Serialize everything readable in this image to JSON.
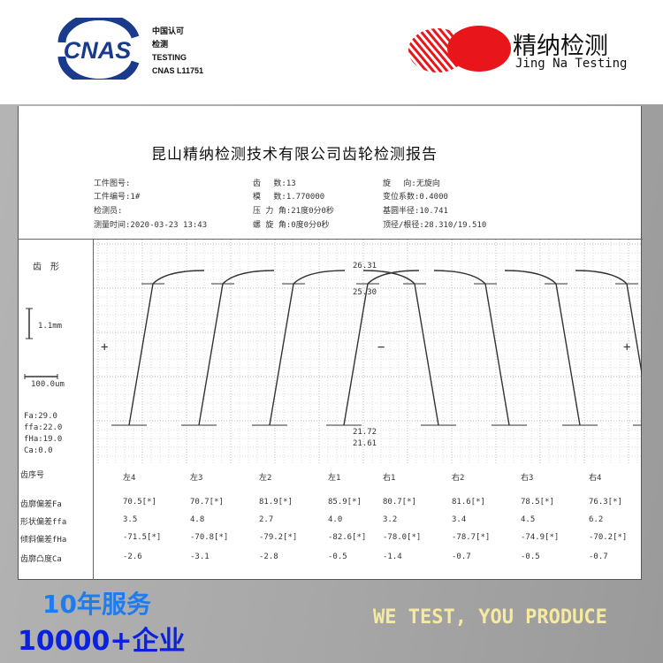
{
  "header": {
    "cnas_logo": "CNAS",
    "cnas_lines": [
      "中国认可",
      "检测",
      "TESTING",
      "CNAS L11751"
    ],
    "brand_cn": "精纳检测",
    "brand_en": "Jing Na Testing",
    "colors": {
      "cnas": "#1a3b8c",
      "brand": "#e8161b"
    }
  },
  "report": {
    "title": "昆山精纳检测技术有限公司齿轮检测报告",
    "info": [
      [
        "工件图号:",
        "齿　 数:13",
        "旋　 向:无旋向"
      ],
      [
        "工件编号:1#",
        "模　 数:1.770000",
        "变位系数:0.4000"
      ],
      [
        "检测员:",
        "压 力 角:21度0分0秒",
        "基圆半径:10.741"
      ],
      [
        "测量时间:2020-03-23 13:43",
        "螺 旋 角:0度0分0秒",
        "顶径/根径:28.310/19.510"
      ]
    ],
    "side": {
      "heading": "齿　形",
      "vscale": "1.1mm",
      "hscale": "100.0um",
      "tol": [
        "Fa:29.0",
        "ffa:22.0",
        "fHa:19.0",
        "Ca:0.0"
      ]
    },
    "chart_labels": {
      "top1": "26.31",
      "top2": "25.30",
      "bot1": "21.72",
      "bot2": "21.61",
      "left_sign": "+",
      "mid_sign": "−",
      "right_sign": "+"
    },
    "table": {
      "row_headers": [
        "齿序号",
        "齿廓偏差Fa",
        "形状偏差ffa",
        "倾斜偏差fHa",
        "齿廓凸度Ca"
      ],
      "columns": [
        "左4",
        "左3",
        "左2",
        "左1",
        "右1",
        "右2",
        "右3",
        "右4"
      ],
      "rows": [
        [
          "70.5[*]",
          "70.7[*]",
          "81.9[*]",
          "85.9[*]",
          "80.7[*]",
          "81.6[*]",
          "78.5[*]",
          "76.3[*]"
        ],
        [
          "3.5",
          "4.8",
          "2.7",
          "4.0",
          "3.2",
          "3.4",
          "4.5",
          "6.2"
        ],
        [
          "-71.5[*]",
          "-70.8[*]",
          "-79.2[*]",
          "-82.6[*]",
          "-78.0[*]",
          "-78.7[*]",
          "-74.9[*]",
          "-70.2[*]"
        ],
        [
          "-2.6",
          "-3.1",
          "-2.8",
          "-0.5",
          "-1.4",
          "-0.7",
          "-0.5",
          "-0.7"
        ]
      ]
    }
  },
  "footer": {
    "years": "10年服务",
    "clients": "10000+企业",
    "slogan": "WE TEST, YOU PRODUCE"
  }
}
